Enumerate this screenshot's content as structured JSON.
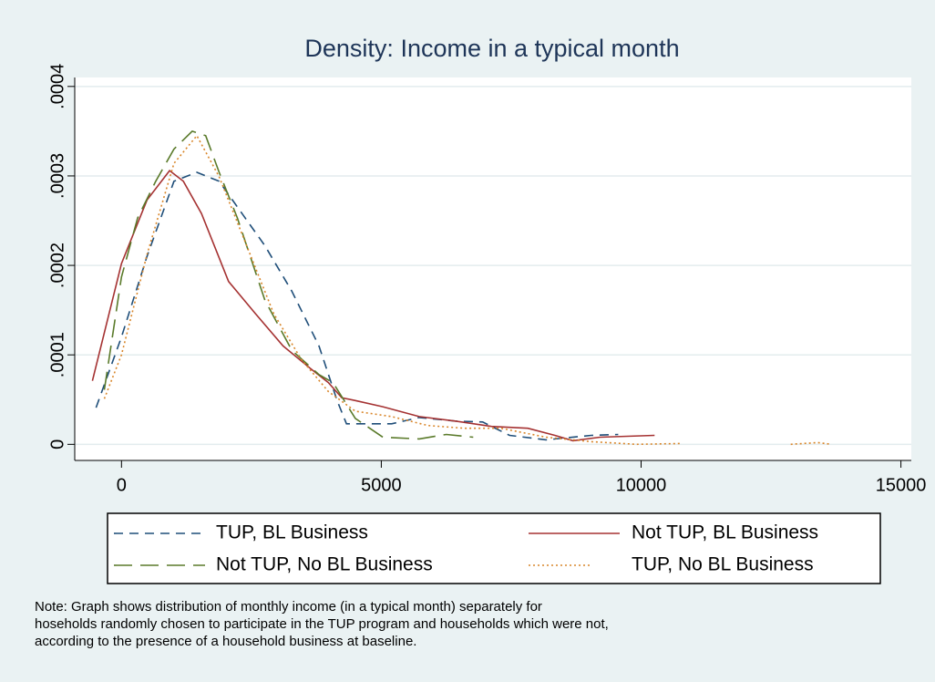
{
  "chart_data": {
    "type": "line",
    "title": "Density: Income in a typical month",
    "xlim": [
      -900,
      15200
    ],
    "ylim": [
      -1.8e-05,
      0.00041
    ],
    "xticks": [
      0,
      5000,
      10000,
      15000
    ],
    "yticks": [
      0,
      {
        "value": 0.0001,
        "label": ".0001"
      },
      {
        "value": 0.0002,
        "label": ".0002"
      },
      {
        "value": 0.0003,
        "label": ".0003"
      },
      {
        "value": 0.0004,
        "label": ".0004"
      }
    ],
    "grid": true,
    "series": [
      {
        "name": "TUP, BL Business",
        "color": "#1f4e79",
        "dash": "10,7",
        "x": [
          -490,
          0,
          490,
          1010,
          1450,
          1880,
          2320,
          2760,
          3280,
          3800,
          4150,
          4330,
          5200,
          5730,
          6420,
          6950,
          7470,
          8170,
          9040,
          9560
        ],
        "values": [
          4.1e-05,
          0.00012,
          0.00021,
          0.000294,
          0.000304,
          0.000294,
          0.000258,
          0.000222,
          0.000171,
          0.00011,
          4.9e-05,
          2.3e-05,
          2.3e-05,
          3e-05,
          2.6e-05,
          2.5e-05,
          1e-05,
          5e-06,
          1e-05,
          1.1e-05
        ]
      },
      {
        "name": "Not TUP, BL Business",
        "color": "#a53232",
        "dash": "none",
        "x": [
          -560,
          0,
          490,
          925,
          1190,
          1540,
          2060,
          2580,
          3110,
          3630,
          3980,
          4240,
          4500,
          5030,
          5730,
          6420,
          7120,
          7820,
          8340,
          8690,
          9210,
          10260
        ],
        "values": [
          7.1e-05,
          0.000202,
          0.000273,
          0.000306,
          0.000294,
          0.000258,
          0.000182,
          0.000146,
          0.00011,
          8.5e-05,
          6.9e-05,
          5.2e-05,
          4.9e-05,
          4.2e-05,
          3.1e-05,
          2.6e-05,
          2e-05,
          1.8e-05,
          1e-05,
          4e-06,
          8e-06,
          1e-05
        ]
      },
      {
        "name": "Not TUP, No BL Business",
        "color": "#5a7a2a",
        "dash": "20,9",
        "x": [
          -330,
          0,
          310,
          660,
          1010,
          1360,
          1620,
          1880,
          2230,
          2760,
          3280,
          3800,
          4070,
          4500,
          5030,
          5730,
          6250,
          6770
        ],
        "values": [
          6.1e-05,
          0.000187,
          0.000253,
          0.000294,
          0.00033,
          0.00035,
          0.000345,
          0.000304,
          0.000253,
          0.000161,
          0.000105,
          7.8e-05,
          6.9e-05,
          2.9e-05,
          8e-06,
          6e-06,
          1.1e-05,
          8e-06
        ]
      },
      {
        "name": "TUP, No BL Business",
        "color": "#d9862a",
        "dash": "2,3",
        "x": [
          -330,
          0,
          490,
          1010,
          1450,
          1880,
          2410,
          2930,
          3460,
          3980,
          4500,
          5200,
          5900,
          6600,
          7300,
          8170,
          9040,
          9910,
          10790,
          11700,
          12880,
          13400,
          13660
        ],
        "values": [
          5.1e-05,
          0.0001,
          0.000212,
          0.000314,
          0.000345,
          0.000299,
          0.000222,
          0.000146,
          9.5e-05,
          5.9e-05,
          3.7e-05,
          3.1e-05,
          2.1e-05,
          1.8e-05,
          1.8e-05,
          8e-06,
          3e-06,
          0,
          1e-06,
          null,
          0,
          2e-06,
          0
        ]
      }
    ],
    "note": [
      "Note: Graph shows  distribution of monthly income (in a typical month) separately for",
      "hoseholds randomly chosen to participate in the TUP program and households which were not,",
      "according to the presence of a household business at baseline."
    ]
  }
}
